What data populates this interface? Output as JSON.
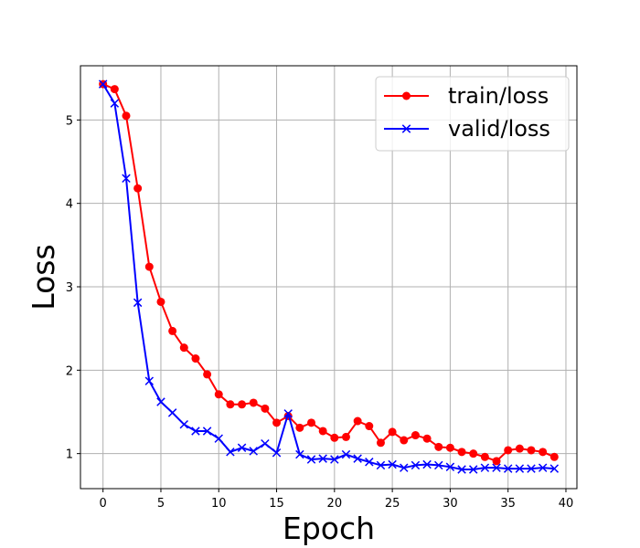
{
  "chart_data": {
    "type": "line",
    "title": "",
    "xlabel": "Epoch",
    "ylabel": "Loss",
    "xlim": [
      -1.95,
      40.95
    ],
    "ylim": [
      0.58,
      5.65
    ],
    "xticks": [
      0,
      5,
      10,
      15,
      20,
      25,
      30,
      35,
      40
    ],
    "yticks": [
      1,
      2,
      3,
      4,
      5
    ],
    "grid": true,
    "legend_position": "top-right",
    "x": [
      0,
      1,
      2,
      3,
      4,
      5,
      6,
      7,
      8,
      9,
      10,
      11,
      12,
      13,
      14,
      15,
      16,
      17,
      18,
      19,
      20,
      21,
      22,
      23,
      24,
      25,
      26,
      27,
      28,
      29,
      30,
      31,
      32,
      33,
      34,
      35,
      36,
      37,
      38,
      39
    ],
    "series": [
      {
        "name": "train/loss",
        "color": "#ff0000",
        "marker": "circle",
        "values": [
          5.43,
          5.37,
          5.05,
          4.18,
          3.24,
          2.82,
          2.47,
          2.27,
          2.14,
          1.95,
          1.71,
          1.59,
          1.59,
          1.61,
          1.54,
          1.37,
          1.45,
          1.31,
          1.37,
          1.27,
          1.19,
          1.2,
          1.39,
          1.33,
          1.13,
          1.26,
          1.16,
          1.22,
          1.18,
          1.08,
          1.07,
          1.02,
          1.0,
          0.96,
          0.91,
          1.04,
          1.06,
          1.04,
          1.02,
          0.96
        ]
      },
      {
        "name": "valid/loss",
        "color": "#0000ff",
        "marker": "x",
        "values": [
          5.43,
          5.2,
          4.3,
          2.81,
          1.87,
          1.62,
          1.49,
          1.35,
          1.27,
          1.27,
          1.18,
          1.02,
          1.07,
          1.03,
          1.12,
          1.01,
          1.48,
          0.99,
          0.93,
          0.94,
          0.93,
          0.99,
          0.94,
          0.9,
          0.86,
          0.87,
          0.83,
          0.86,
          0.87,
          0.86,
          0.84,
          0.81,
          0.81,
          0.83,
          0.83,
          0.82,
          0.82,
          0.82,
          0.83,
          0.82
        ]
      }
    ]
  }
}
